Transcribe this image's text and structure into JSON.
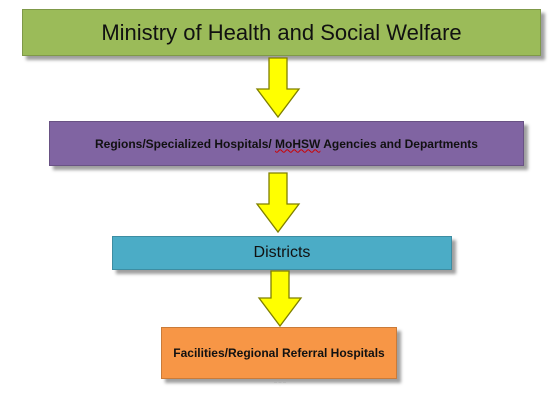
{
  "diagram": {
    "nodes": [
      {
        "id": "ministry",
        "label": "Ministry of Health and Social Welfare"
      },
      {
        "id": "regions",
        "label_parts": [
          "Regions/Specialized Hospitals/ ",
          "MoHSW",
          " Agencies and Departments"
        ]
      },
      {
        "id": "districts",
        "label": "Districts"
      },
      {
        "id": "facilities",
        "label": "Facilities/Regional Referral Hospitals"
      }
    ],
    "edges": [
      {
        "from": "ministry",
        "to": "regions"
      },
      {
        "from": "regions",
        "to": "districts"
      },
      {
        "from": "districts",
        "to": "facilities"
      }
    ]
  },
  "colors": {
    "ministry": "#9bbb59",
    "regions": "#8064a2",
    "districts": "#4bacc6",
    "facilities": "#f79646",
    "arrow_fill": "#ffff00",
    "arrow_stroke": "#7f7f00",
    "spellcheck_underline": "#cc0000"
  }
}
